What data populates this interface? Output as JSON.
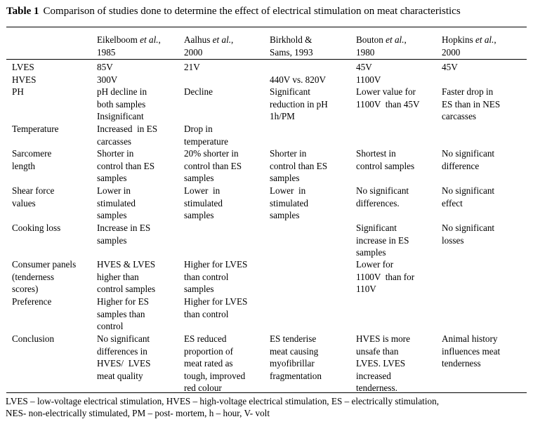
{
  "caption": {
    "label": "Table 1",
    "text": "Comparison of studies done to determine the effect of electrical stimulation on meat characteristics"
  },
  "headers": [
    {
      "line1_author": "Eikelboom",
      "line1_etal": " et al.",
      "line1_tail": ",",
      "line2": "1985"
    },
    {
      "line1_author": "Aalhus",
      "line1_etal": " et al.",
      "line1_tail": ",",
      "line2": "2000"
    },
    {
      "line1_author": "Birkhold &",
      "line1_etal": "",
      "line1_tail": "",
      "line2": "Sams, 1993"
    },
    {
      "line1_author": "Bouton",
      "line1_etal": " et al.",
      "line1_tail": ",",
      "line2": "1980"
    },
    {
      "line1_author": "Hopkins",
      "line1_etal": " et al.",
      "line1_tail": ",",
      "line2": "2000"
    }
  ],
  "rows": [
    {
      "label": "LVES",
      "cells": [
        "85V",
        "21V",
        "",
        "45V",
        "45V"
      ]
    },
    {
      "label": "HVES",
      "cells": [
        "300V",
        "",
        "440V vs. 820V",
        "1100V",
        ""
      ]
    },
    {
      "label": "PH",
      "cells": [
        "pH decline in\nboth samples\nInsignificant",
        "Decline",
        "Significant\nreduction in pH\n1h/PM",
        "Lower value for\n1100V  than 45V",
        "Faster drop in\nES than in NES\ncarcasses"
      ]
    },
    {
      "label": "Temperature",
      "cells": [
        "Increased  in ES\ncarcasses",
        "Drop in\ntemperature",
        "",
        "",
        ""
      ]
    },
    {
      "label": "Sarcomere\nlength",
      "cells": [
        "Shorter in\ncontrol than ES\nsamples",
        "20% shorter in\ncontrol than ES\nsamples",
        "Shorter in\ncontrol than ES\nsamples",
        "Shortest in\ncontrol samples",
        "No significant\ndifference"
      ]
    },
    {
      "label": "Shear force\nvalues",
      "cells": [
        "Lower in\nstimulated\nsamples",
        "Lower  in\nstimulated\nsamples",
        "Lower  in\nstimulated\nsamples",
        "No significant\ndifferences.",
        "No significant\neffect"
      ]
    },
    {
      "label": "Cooking loss",
      "cells": [
        "Increase in ES\nsamples",
        "",
        "",
        "Significant\nincrease in ES\nsamples",
        "No significant\nlosses"
      ]
    },
    {
      "label": "Consumer panels\n(tenderness\nscores)",
      "cells": [
        "HVES & LVES\nhigher than\ncontrol samples",
        "Higher for LVES\nthan control\nsamples",
        "",
        "Lower for\n1100V  than for\n110V",
        ""
      ]
    },
    {
      "label": "Preference",
      "cells": [
        "Higher for ES\nsamples than\ncontrol",
        "Higher for LVES\nthan control",
        "",
        "",
        ""
      ]
    },
    {
      "label": "Conclusion",
      "cells": [
        "No significant\ndifferences in\nHVES/  LVES\nmeat quality",
        "ES reduced\nproportion of\nmeat rated as\ntough, improved\nred colour",
        "ES tenderise\nmeat causing\nmyofibrillar\nfragmentation",
        "HVES is more\nunsafe than\nLVES. LVES\nincreased\ntenderness.",
        "Animal history\ninfluences meat\ntenderness"
      ]
    }
  ],
  "footnote": {
    "line1": "LVES – low-voltage electrical stimulation, HVES – high-voltage electrical stimulation,  ES – electrically stimulation,",
    "line2": "NES- non-electrically stimulated, PM – post- mortem, h – hour, V- volt"
  }
}
